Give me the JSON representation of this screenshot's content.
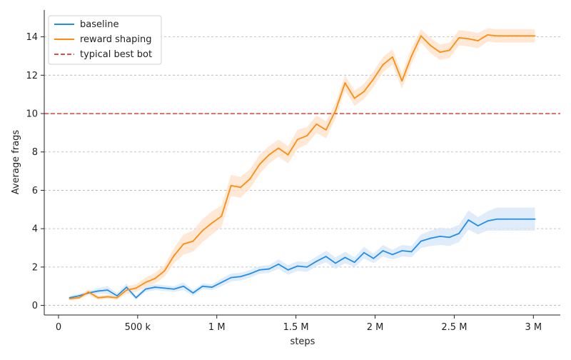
{
  "chart_data": {
    "type": "line",
    "title": "",
    "xlabel": "steps",
    "ylabel": "Average frags",
    "xlim": [
      -90000,
      3170000
    ],
    "ylim": [
      -0.5,
      15.4
    ],
    "grid": "horizontal dashed",
    "x_ticks": [
      {
        "value": 0,
        "label": "0"
      },
      {
        "value": 500000,
        "label": "500 k"
      },
      {
        "value": 1000000,
        "label": "1 M"
      },
      {
        "value": 1500000,
        "label": "1.5 M"
      },
      {
        "value": 2000000,
        "label": "2 M"
      },
      {
        "value": 2500000,
        "label": "2.5 M"
      },
      {
        "value": 3000000,
        "label": "3 M"
      }
    ],
    "y_ticks": [
      {
        "value": 0,
        "label": "0"
      },
      {
        "value": 2,
        "label": "2"
      },
      {
        "value": 4,
        "label": "4"
      },
      {
        "value": 6,
        "label": "6"
      },
      {
        "value": 8,
        "label": "8"
      },
      {
        "value": 10,
        "label": "10"
      },
      {
        "value": 12,
        "label": "12"
      },
      {
        "value": 14,
        "label": "14"
      }
    ],
    "legend_position": "top-left",
    "reference_line": {
      "name": "typical best bot",
      "y": 10,
      "color": "#d9534f"
    },
    "x": [
      70000,
      130000,
      190000,
      250000,
      310000,
      370000,
      430000,
      490000,
      550000,
      610000,
      670000,
      730000,
      790000,
      850000,
      910000,
      970000,
      1030000,
      1090000,
      1150000,
      1210000,
      1270000,
      1330000,
      1390000,
      1450000,
      1510000,
      1570000,
      1630000,
      1690000,
      1750000,
      1810000,
      1870000,
      1930000,
      1990000,
      2050000,
      2110000,
      2170000,
      2230000,
      2290000,
      2350000,
      2410000,
      2470000,
      2530000,
      2590000,
      2650000,
      2710000,
      2770000,
      2830000,
      2890000,
      2950000,
      3010000
    ],
    "series": [
      {
        "name": "baseline",
        "color": "#1f8eed",
        "band_color": "#d6e6f7",
        "values": [
          0.4,
          0.5,
          0.65,
          0.75,
          0.8,
          0.5,
          0.95,
          0.4,
          0.85,
          0.95,
          0.9,
          0.85,
          1.0,
          0.65,
          1.0,
          0.95,
          1.2,
          1.45,
          1.5,
          1.65,
          1.85,
          1.9,
          2.15,
          1.85,
          2.05,
          2.0,
          2.3,
          2.55,
          2.2,
          2.5,
          2.25,
          2.75,
          2.45,
          2.85,
          2.65,
          2.85,
          2.8,
          3.35,
          3.5,
          3.6,
          3.55,
          3.75,
          4.45,
          4.15,
          4.4,
          4.5,
          4.5,
          4.5,
          4.5,
          4.5
        ],
        "lower": [
          0.3,
          0.4,
          0.55,
          0.6,
          0.6,
          0.35,
          0.75,
          0.3,
          0.7,
          0.8,
          0.75,
          0.7,
          0.8,
          0.5,
          0.85,
          0.8,
          1.0,
          1.25,
          1.3,
          1.45,
          1.65,
          1.7,
          1.9,
          1.6,
          1.8,
          1.75,
          2.05,
          2.25,
          1.9,
          2.2,
          2.0,
          2.45,
          2.2,
          2.55,
          2.4,
          2.55,
          2.5,
          3.0,
          3.1,
          3.15,
          3.1,
          3.3,
          3.95,
          3.7,
          3.9,
          3.9,
          3.9,
          3.9,
          3.9,
          3.9
        ],
        "upper": [
          0.5,
          0.6,
          0.75,
          0.9,
          1.0,
          0.65,
          1.15,
          0.5,
          1.0,
          1.1,
          1.05,
          1.0,
          1.2,
          0.8,
          1.15,
          1.1,
          1.4,
          1.65,
          1.7,
          1.85,
          2.05,
          2.1,
          2.4,
          2.1,
          2.3,
          2.25,
          2.55,
          2.85,
          2.5,
          2.8,
          2.5,
          3.05,
          2.7,
          3.15,
          2.9,
          3.15,
          3.1,
          3.7,
          3.9,
          4.05,
          4.0,
          4.2,
          4.95,
          4.6,
          4.9,
          5.1,
          5.1,
          5.1,
          5.1,
          5.1
        ]
      },
      {
        "name": "reward shaping",
        "color": "#ff8c0a",
        "band_color": "#ffe2c8",
        "values": [
          0.35,
          0.4,
          0.7,
          0.4,
          0.45,
          0.4,
          0.8,
          0.9,
          1.2,
          1.4,
          1.8,
          2.6,
          3.2,
          3.35,
          3.9,
          4.3,
          4.65,
          6.25,
          6.15,
          6.6,
          7.35,
          7.85,
          8.2,
          7.85,
          8.65,
          8.85,
          9.45,
          9.15,
          10.15,
          11.6,
          10.8,
          11.15,
          11.8,
          12.55,
          12.95,
          11.7,
          13.0,
          14.05,
          13.55,
          13.2,
          13.3,
          13.95,
          13.9,
          13.8,
          14.1,
          14.05,
          14.05,
          14.05,
          14.05,
          14.05
        ],
        "lower": [
          0.25,
          0.3,
          0.55,
          0.3,
          0.35,
          0.3,
          0.6,
          0.7,
          0.95,
          1.15,
          1.5,
          2.2,
          2.65,
          2.8,
          3.3,
          3.7,
          4.1,
          5.7,
          5.6,
          6.1,
          6.85,
          7.4,
          7.75,
          7.4,
          8.15,
          8.4,
          9.0,
          8.7,
          9.75,
          11.2,
          10.4,
          10.75,
          11.4,
          12.15,
          12.55,
          11.3,
          12.6,
          13.7,
          13.15,
          12.8,
          12.9,
          13.55,
          13.5,
          13.4,
          13.75,
          13.7,
          13.7,
          13.7,
          13.7,
          13.7
        ],
        "upper": [
          0.45,
          0.5,
          0.85,
          0.5,
          0.55,
          0.5,
          1.0,
          1.1,
          1.45,
          1.7,
          2.1,
          3.0,
          3.7,
          3.9,
          4.5,
          4.9,
          5.2,
          6.8,
          6.7,
          7.1,
          7.85,
          8.3,
          8.65,
          8.3,
          9.15,
          9.3,
          9.9,
          9.6,
          10.55,
          12.0,
          11.2,
          11.55,
          12.2,
          12.95,
          13.35,
          12.1,
          13.4,
          14.4,
          13.95,
          13.6,
          13.7,
          14.35,
          14.3,
          14.2,
          14.45,
          14.4,
          14.4,
          14.4,
          14.4,
          14.4
        ]
      }
    ]
  }
}
